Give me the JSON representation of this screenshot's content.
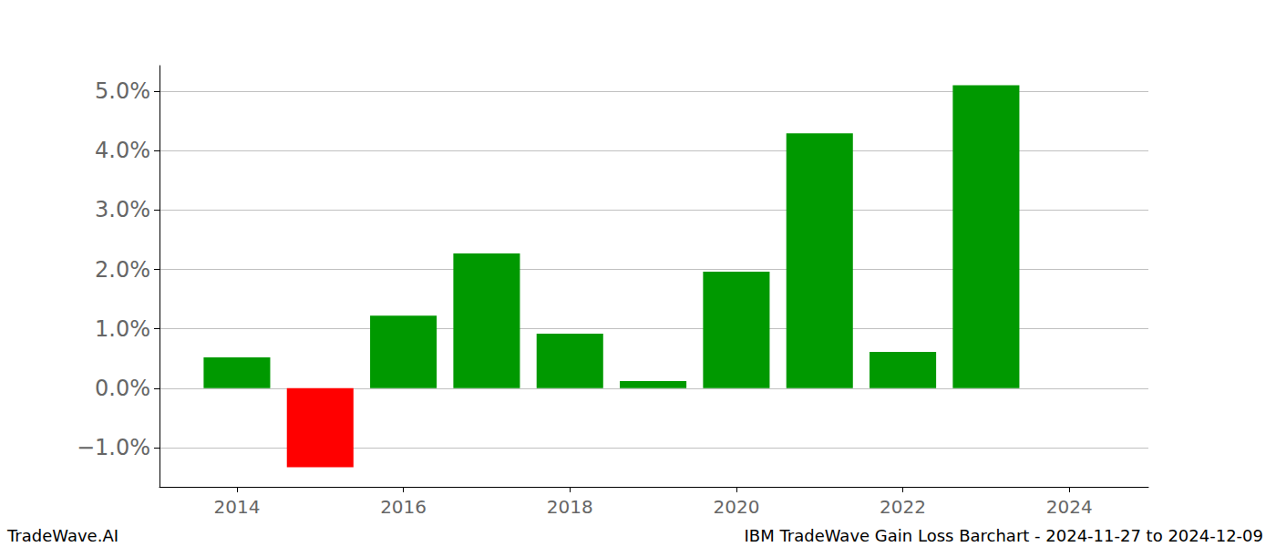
{
  "chart_data": {
    "type": "bar",
    "title": "IBM TradeWave Gain Loss Barchart - 2024-11-27 to 2024-12-09",
    "annotations": [
      "TradeWave.AI"
    ],
    "x": [
      2014,
      2015,
      2016,
      2017,
      2018,
      2019,
      2020,
      2021,
      2022,
      2023
    ],
    "values": [
      0.52,
      -1.33,
      1.22,
      2.27,
      0.92,
      0.12,
      1.96,
      4.29,
      0.61,
      5.1
    ],
    "colors": [
      "#009900",
      "#ff0000",
      "#009900",
      "#009900",
      "#009900",
      "#009900",
      "#009900",
      "#009900",
      "#009900",
      "#009900"
    ],
    "xlim": [
      2013.07,
      2024.95
    ],
    "xticks": [
      2014,
      2016,
      2018,
      2020,
      2022,
      2024
    ],
    "ylim": [
      -1.66,
      5.43
    ],
    "yticks": [
      {
        "value": -1,
        "label": "−1.0%"
      },
      {
        "value": 0,
        "label": "0.0%"
      },
      {
        "value": 1,
        "label": "1.0%"
      },
      {
        "value": 2,
        "label": "2.0%"
      },
      {
        "value": 3,
        "label": "3.0%"
      },
      {
        "value": 4,
        "label": "4.0%"
      },
      {
        "value": 5,
        "label": "5.0%"
      }
    ],
    "grid": true
  }
}
